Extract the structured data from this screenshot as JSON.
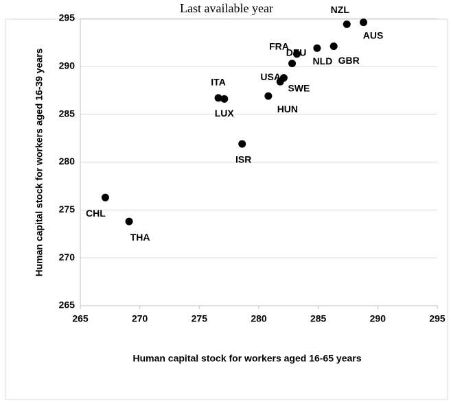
{
  "chart_data": {
    "type": "scatter",
    "title": "Last available year",
    "x_label": "Human capital stock  for workers aged 16-65 years",
    "y_label": "Human capital stock for workers aged 16-39 years",
    "labels": [
      "CHL",
      "THA",
      "ITA",
      "LUX",
      "ISR",
      "HUN",
      "USA",
      "SWE",
      "DEU",
      "FRA",
      "NLD",
      "GBR",
      "NZL",
      "AUS"
    ],
    "x": [
      267.1,
      269.1,
      276.6,
      277.1,
      278.6,
      280.8,
      281.8,
      282.1,
      282.8,
      283.2,
      284.9,
      286.3,
      287.4,
      288.8
    ],
    "y": [
      276.3,
      273.8,
      286.7,
      286.6,
      281.9,
      286.9,
      288.4,
      288.8,
      290.3,
      291.3,
      291.9,
      292.1,
      294.4,
      294.6
    ],
    "color": "#000000",
    "xlim": [
      265,
      295
    ],
    "xticks": [
      265,
      270,
      275,
      280,
      285,
      290,
      295
    ],
    "ylim": [
      265,
      295
    ],
    "yticks": [
      265,
      270,
      275,
      280,
      285,
      290,
      295
    ],
    "grid": true
  }
}
